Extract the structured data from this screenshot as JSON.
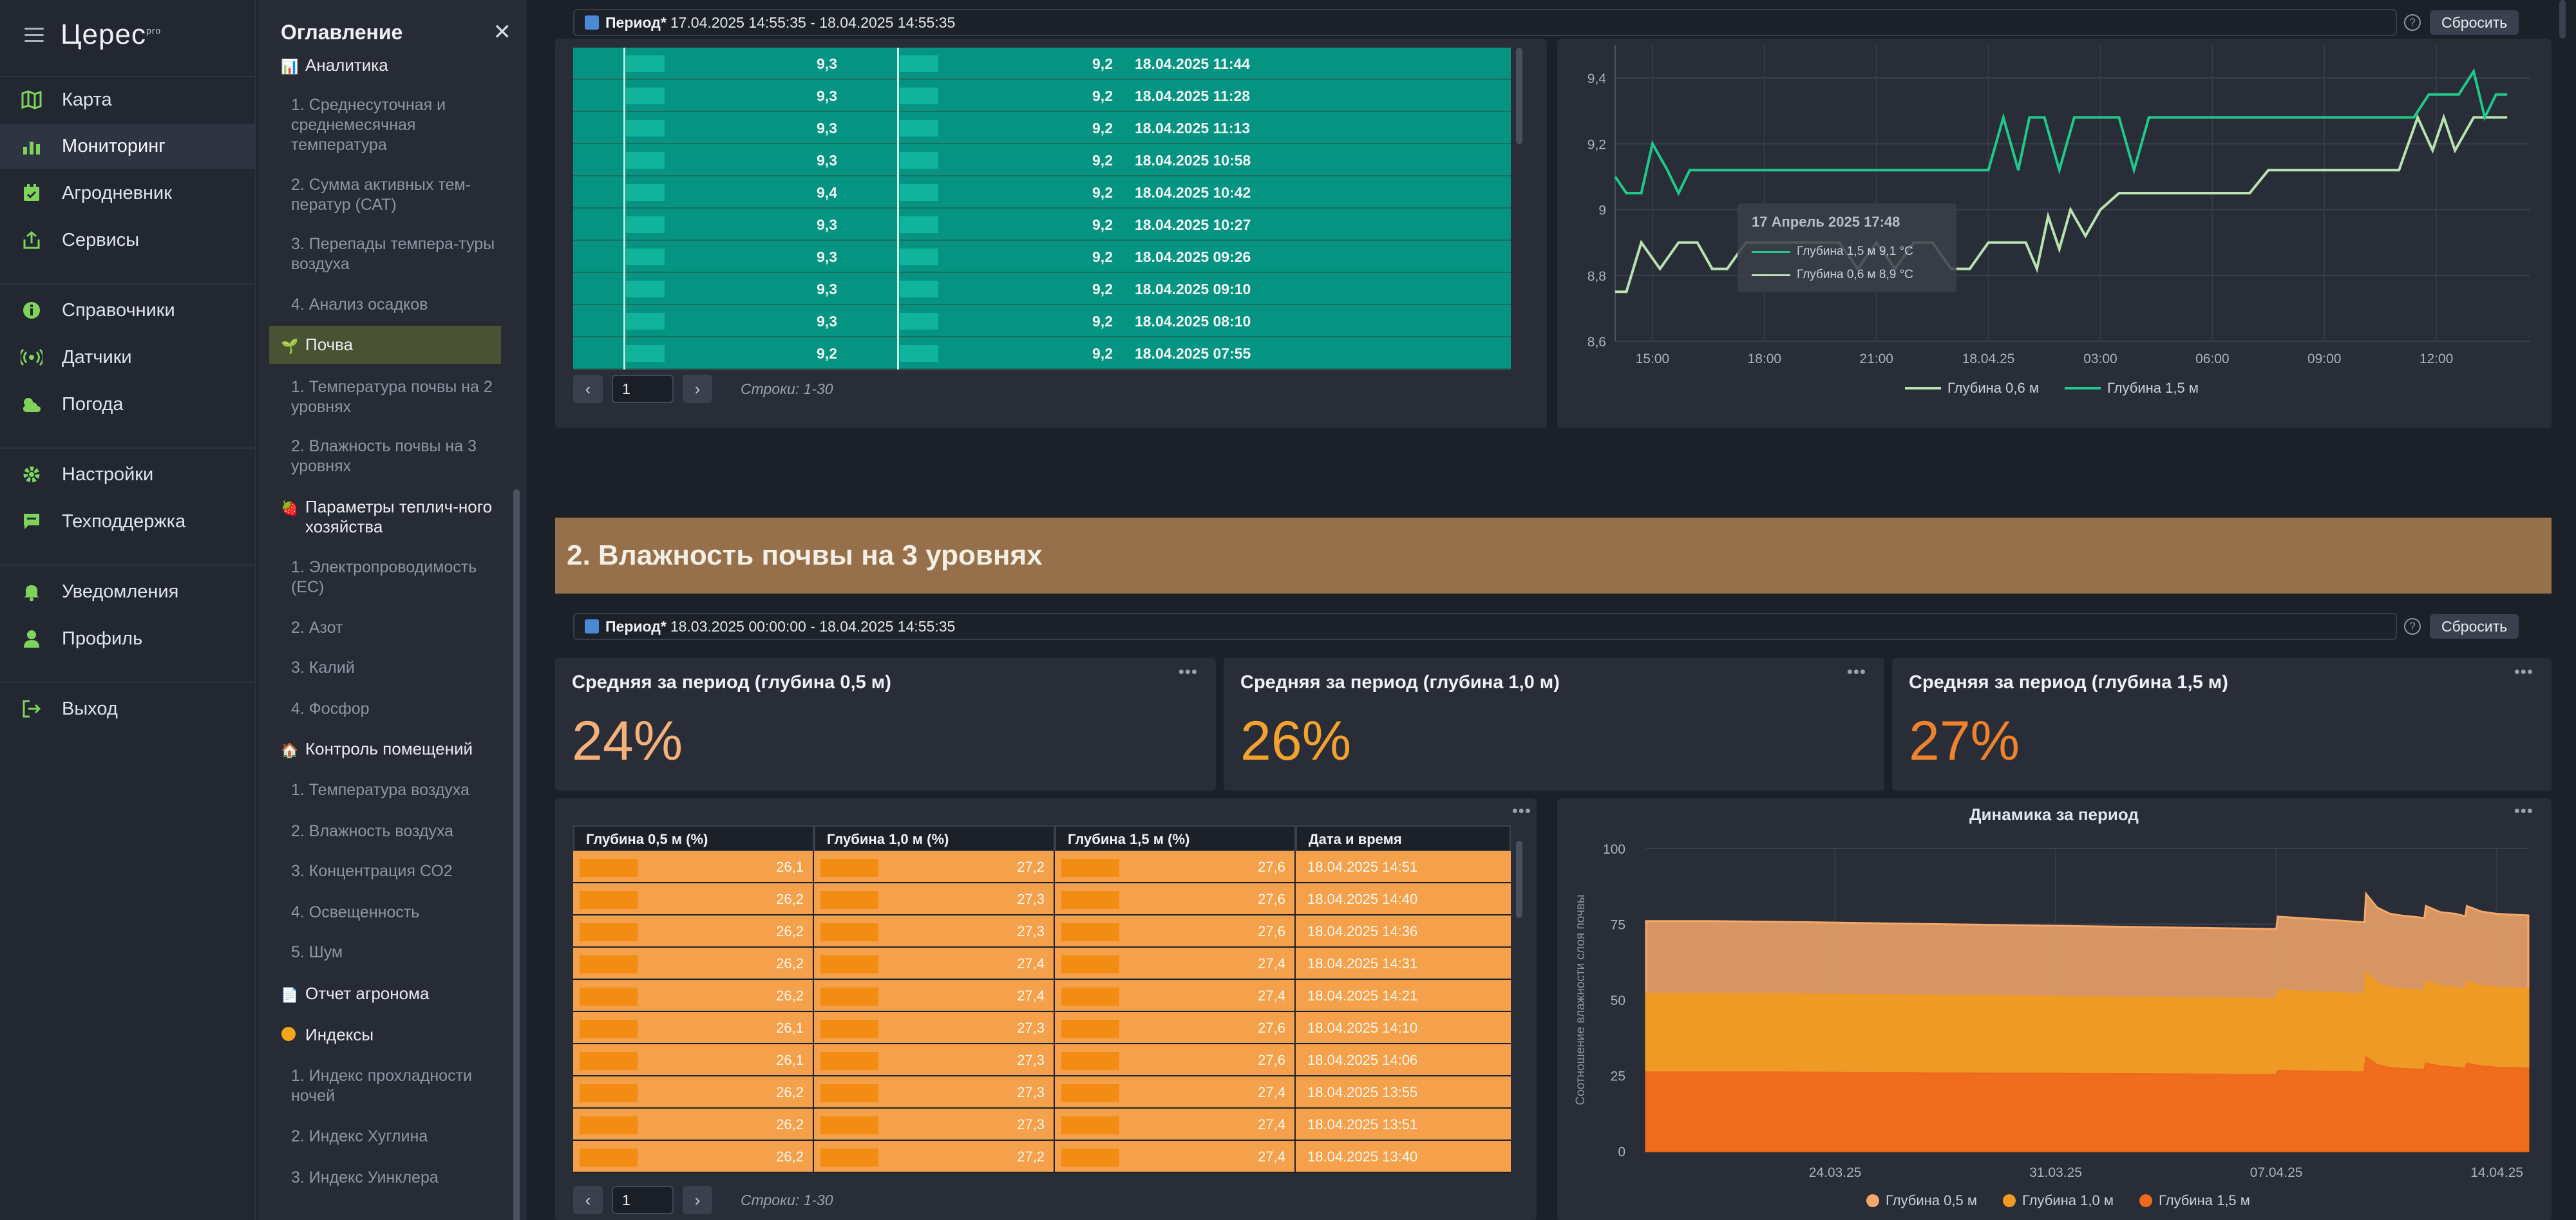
{
  "nav": {
    "logo": "Церес",
    "logo_sup": "pro",
    "items": [
      {
        "label": "Карта",
        "icon": "map-icon"
      },
      {
        "label": "Мониторинг",
        "icon": "bar-chart-icon"
      },
      {
        "label": "Агродневник",
        "icon": "diary-icon"
      },
      {
        "label": "Сервисы",
        "icon": "share-icon"
      },
      {
        "label": "Справочники",
        "icon": "info-icon"
      },
      {
        "label": "Датчики",
        "icon": "sensor-icon"
      },
      {
        "label": "Погода",
        "icon": "weather-icon"
      },
      {
        "label": "Настройки",
        "icon": "gear-icon"
      },
      {
        "label": "Техподдержка",
        "icon": "chat-icon"
      },
      {
        "label": "Уведомления",
        "icon": "bell-icon"
      },
      {
        "label": "Профиль",
        "icon": "user-icon"
      },
      {
        "label": "Выход",
        "icon": "logout-icon"
      }
    ]
  },
  "toc": {
    "title": "Оглавление",
    "sec_analytics": "Аналитика",
    "analytics_items": [
      "1. Среднесуточная и среднемесячная температура",
      "2. Сумма активных тем-ператур (САТ)",
      "3. Перепады темпера-туры воздуха",
      "4. Анализ осадков"
    ],
    "sec_soil": "Почва",
    "soil_items": [
      "1. Температура почвы на 2 уровнях",
      "2. Влажность почвы на 3 уровнях"
    ],
    "sec_greenhouse": "Параметры теплич-ного хозяйства",
    "greenhouse_items": [
      "1. Электропроводимость (ЕС)",
      "2. Азот",
      "3. Калий",
      "4. Фосфор"
    ],
    "sec_rooms": "Контроль помещений",
    "rooms_items": [
      "1. Температура воздуха",
      "2. Влажность воздуха",
      "3. Концентрация СО2",
      "4. Освещенность",
      "5. Шум"
    ],
    "sec_report": "Отчет агронома",
    "sec_indexes": "Индексы",
    "indexes_items": [
      "1. Индекс прохладности ночей",
      "2. Индекс Хуглина",
      "3. Индекс Уинклера"
    ]
  },
  "top_period": {
    "label": "Период*",
    "value": "17.04.2025 14:55:35 - 18.04.2025 14:55:35",
    "reset": "Сбросить"
  },
  "temp_table": {
    "rows": [
      {
        "a": "9,3",
        "b": "9,2",
        "date": "18.04.2025 11:44"
      },
      {
        "a": "9,3",
        "b": "9,2",
        "date": "18.04.2025 11:28"
      },
      {
        "a": "9,3",
        "b": "9,2",
        "date": "18.04.2025 11:13"
      },
      {
        "a": "9,3",
        "b": "9,2",
        "date": "18.04.2025 10:58"
      },
      {
        "a": "9,4",
        "b": "9,2",
        "date": "18.04.2025 10:42"
      },
      {
        "a": "9,3",
        "b": "9,2",
        "date": "18.04.2025 10:27"
      },
      {
        "a": "9,3",
        "b": "9,2",
        "date": "18.04.2025 09:26"
      },
      {
        "a": "9,3",
        "b": "9,2",
        "date": "18.04.2025 09:10"
      },
      {
        "a": "9,3",
        "b": "9,2",
        "date": "18.04.2025 08:10"
      },
      {
        "a": "9,2",
        "b": "9,2",
        "date": "18.04.2025 07:55"
      }
    ],
    "page": "1",
    "rows_info": "Строки: 1-30"
  },
  "section2_title": "2. Влажность почвы на 3 уровнях",
  "period2": {
    "label": "Период*",
    "value": "18.03.2025 00:00:00 - 18.04.2025 14:55:35",
    "reset": "Сбросить"
  },
  "stats": [
    {
      "title": "Средняя за период (глубина 0,5 м)",
      "value": "24%"
    },
    {
      "title": "Средняя за период (глубина 1,0 м)",
      "value": "26%"
    },
    {
      "title": "Средняя за период (глубина 1,5 м)",
      "value": "27%"
    }
  ],
  "moist_table": {
    "headers": [
      "Глубина 0,5 м (%)",
      "Глубина 1,0 м (%)",
      "Глубина 1,5 м (%)",
      "Дата и время"
    ],
    "rows": [
      {
        "a": "26,1",
        "b": "27,2",
        "c": "27,6",
        "date": "18.04.2025 14:51"
      },
      {
        "a": "26,2",
        "b": "27,3",
        "c": "27,6",
        "date": "18.04.2025 14:40"
      },
      {
        "a": "26,2",
        "b": "27,3",
        "c": "27,6",
        "date": "18.04.2025 14:36"
      },
      {
        "a": "26,2",
        "b": "27,4",
        "c": "27,4",
        "date": "18.04.2025 14:31"
      },
      {
        "a": "26,2",
        "b": "27,4",
        "c": "27,4",
        "date": "18.04.2025 14:21"
      },
      {
        "a": "26,1",
        "b": "27,3",
        "c": "27,6",
        "date": "18.04.2025 14:10"
      },
      {
        "a": "26,1",
        "b": "27,3",
        "c": "27,6",
        "date": "18.04.2025 14:06"
      },
      {
        "a": "26,2",
        "b": "27,3",
        "c": "27,4",
        "date": "18.04.2025 13:55"
      },
      {
        "a": "26,2",
        "b": "27,3",
        "c": "27,4",
        "date": "18.04.2025 13:51"
      },
      {
        "a": "26,2",
        "b": "27,2",
        "c": "27,4",
        "date": "18.04.2025 13:40"
      }
    ],
    "page": "1",
    "rows_info": "Строки: 1-30"
  },
  "tooltip": {
    "title": "17 Апрель 2025 17:48",
    "l1": "Глубина 1,5 м  9,1 °C",
    "l2": "Глубина 0,6 м  8,9 °C"
  },
  "colors": {
    "green_line": "#1fc98a",
    "pale_line": "#b9e3b0",
    "o05": "#f5a86a",
    "o10": "#f09a22",
    "o15": "#ef6a1c",
    "teal": "#049481"
  },
  "chart_data": [
    {
      "type": "line",
      "title": "",
      "x_ticks": [
        "15:00",
        "18:00",
        "21:00",
        "18.04.25",
        "03:00",
        "06:00",
        "09:00",
        "12:00"
      ],
      "ylim": [
        8.6,
        9.5
      ],
      "y_ticks": [
        "8,6",
        "8,8",
        "9",
        "9,2",
        "9,4"
      ],
      "grid": true,
      "legend_position": "bottom",
      "series": [
        {
          "name": "Глубина 0,6 м",
          "x": [
            14.0,
            14.3,
            14.7,
            15.2,
            15.7,
            16.2,
            16.6,
            17.0,
            17.5,
            18.0,
            18.5,
            19.0,
            19.5,
            20.0,
            20.5,
            21.0,
            21.5,
            22.0,
            22.5,
            23.0,
            23.5,
            24.0,
            24.5,
            25.0,
            25.3,
            25.6,
            25.9,
            26.2,
            26.6,
            27.0,
            27.5,
            28.0,
            28.5,
            29.0,
            29.5,
            30.0,
            30.5,
            31.0,
            31.5,
            32.0,
            32.3,
            32.6,
            32.9,
            33.2,
            33.6,
            34.0,
            34.5,
            35.0,
            35.5,
            35.9,
            36.2,
            36.5,
            37.0,
            37.5,
            37.9
          ],
          "y": [
            8.75,
            8.75,
            8.9,
            8.82,
            8.9,
            8.9,
            8.82,
            8.82,
            8.9,
            8.9,
            8.9,
            8.9,
            8.9,
            8.9,
            8.82,
            8.9,
            8.82,
            8.9,
            8.9,
            8.82,
            8.82,
            8.9,
            8.9,
            8.9,
            8.82,
            8.98,
            8.88,
            9.0,
            8.92,
            9.0,
            9.05,
            9.05,
            9.05,
            9.05,
            9.05,
            9.05,
            9.05,
            9.05,
            9.12,
            9.12,
            9.12,
            9.12,
            9.12,
            9.12,
            9.12,
            9.12,
            9.12,
            9.12,
            9.28,
            9.18,
            9.28,
            9.18,
            9.28,
            9.28,
            9.28
          ]
        },
        {
          "name": "Глубина 1,5 м",
          "x": [
            14.0,
            14.3,
            14.7,
            15.0,
            15.4,
            15.7,
            16.0,
            16.4,
            16.8,
            17.2,
            17.6,
            18.0,
            18.5,
            19.0,
            19.5,
            20.0,
            20.5,
            21.0,
            21.5,
            22.0,
            22.5,
            23.0,
            23.5,
            24.0,
            24.4,
            24.8,
            25.1,
            25.5,
            25.9,
            26.3,
            26.7,
            27.1,
            27.5,
            27.9,
            28.3,
            28.7,
            29.1,
            29.5,
            30.0,
            30.5,
            31.0,
            31.5,
            32.0,
            32.4,
            32.8,
            33.2,
            33.6,
            34.0,
            34.5,
            35.0,
            35.4,
            35.8,
            36.2,
            36.6,
            37.0,
            37.3,
            37.6,
            37.9
          ],
          "y": [
            9.1,
            9.05,
            9.05,
            9.2,
            9.12,
            9.05,
            9.12,
            9.12,
            9.12,
            9.12,
            9.12,
            9.12,
            9.12,
            9.12,
            9.12,
            9.12,
            9.12,
            9.12,
            9.12,
            9.12,
            9.12,
            9.12,
            9.12,
            9.12,
            9.28,
            9.12,
            9.28,
            9.28,
            9.12,
            9.28,
            9.28,
            9.28,
            9.28,
            9.12,
            9.28,
            9.28,
            9.28,
            9.28,
            9.28,
            9.28,
            9.28,
            9.28,
            9.28,
            9.28,
            9.28,
            9.28,
            9.28,
            9.28,
            9.28,
            9.28,
            9.28,
            9.35,
            9.35,
            9.35,
            9.42,
            9.28,
            9.35,
            9.35
          ]
        }
      ]
    },
    {
      "type": "area",
      "title": "Динамика за период",
      "ylabel": "Соотношение влажности слоя почвы",
      "ylim": [
        0,
        100
      ],
      "y_ticks": [
        "0",
        "25",
        "50",
        "75",
        "100"
      ],
      "x_ticks": [
        "24.03.25",
        "31.03.25",
        "07.04.25",
        "14.04.25"
      ],
      "grid": true,
      "legend_position": "bottom",
      "stacked": true,
      "x_days": [
        18.0,
        20.0,
        22.0,
        24.0,
        26.0,
        28.0,
        30.0,
        32.0,
        34.0,
        36.0,
        38.0,
        38.05,
        40.0,
        40.8,
        40.85,
        41.2,
        41.6,
        42.0,
        42.4,
        42.7,
        42.75,
        43.2,
        43.7,
        44.0,
        44.05,
        44.5,
        45.0,
        46.0
      ],
      "series": [
        {
          "name": "Глубина 0,5 м",
          "values": [
            24.0,
            24.0,
            23.9,
            23.8,
            23.7,
            23.6,
            23.5,
            23.4,
            23.3,
            23.2,
            23.1,
            24.5,
            24.0,
            23.8,
            26.0,
            25.0,
            24.5,
            24.3,
            24.2,
            24.1,
            25.0,
            24.5,
            24.4,
            24.2,
            25.0,
            24.6,
            24.4,
            24.3
          ]
        },
        {
          "name": "Глубина 1,0 м",
          "values": [
            26.0,
            26.0,
            25.9,
            25.8,
            25.7,
            25.6,
            25.5,
            25.4,
            25.3,
            25.2,
            25.1,
            26.5,
            26.0,
            25.8,
            28.0,
            27.0,
            26.5,
            26.3,
            26.2,
            26.1,
            27.0,
            26.5,
            26.4,
            26.2,
            27.0,
            26.6,
            26.4,
            26.3
          ]
        },
        {
          "name": "Глубина 1,5 м",
          "values": [
            26.0,
            26.0,
            26.0,
            25.9,
            25.8,
            25.7,
            25.6,
            25.5,
            25.4,
            25.3,
            25.2,
            26.5,
            26.2,
            26.0,
            31.0,
            28.5,
            27.5,
            27.2,
            27.0,
            26.8,
            29.0,
            28.0,
            27.6,
            27.2,
            29.0,
            28.0,
            27.6,
            27.3
          ]
        }
      ]
    }
  ]
}
